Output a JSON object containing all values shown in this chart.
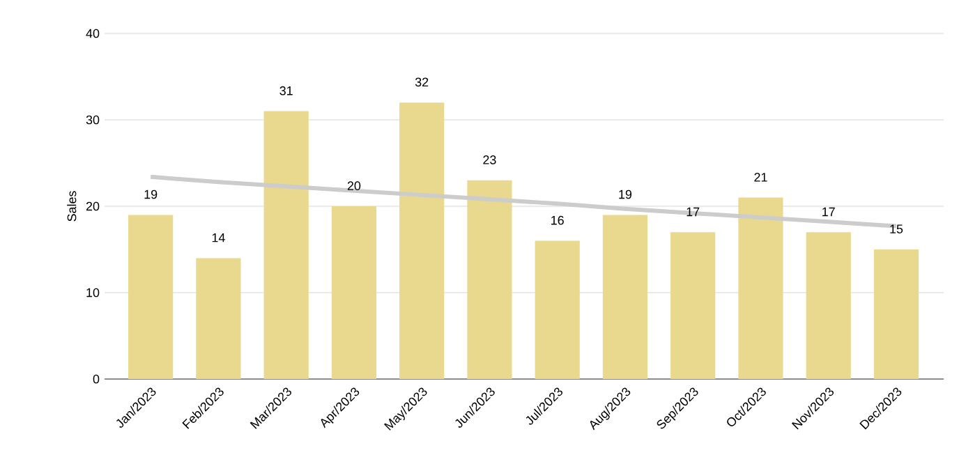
{
  "chart_data": {
    "type": "bar",
    "ylabel": "Sales",
    "categories": [
      "Jan/2023",
      "Feb/2023",
      "Mar/2023",
      "Apr/2023",
      "May/2023",
      "Jun/2023",
      "Jul/2023",
      "Aug/2023",
      "Sep/2023",
      "Oct/2023",
      "Nov/2023",
      "Dec/2023"
    ],
    "series": [
      {
        "color": "#e8d98f",
        "values": [
          19,
          14,
          31,
          20,
          32,
          23,
          16,
          19,
          17,
          21,
          17,
          15
        ],
        "value_labels": [
          "19",
          "14",
          "31",
          "20",
          "32",
          "23",
          "16",
          "19",
          "17",
          "21",
          "17",
          "15"
        ]
      },
      {
        "type": "line",
        "color": "#cccccc",
        "values": [
          23.4,
          22.8,
          22.3,
          21.8,
          21.3,
          20.8,
          20.3,
          19.7,
          19.2,
          18.7,
          18.2,
          17.7
        ]
      }
    ],
    "ylim": [
      0,
      40
    ],
    "yticks": [
      0,
      10,
      20,
      30,
      40
    ],
    "grid": "y"
  }
}
